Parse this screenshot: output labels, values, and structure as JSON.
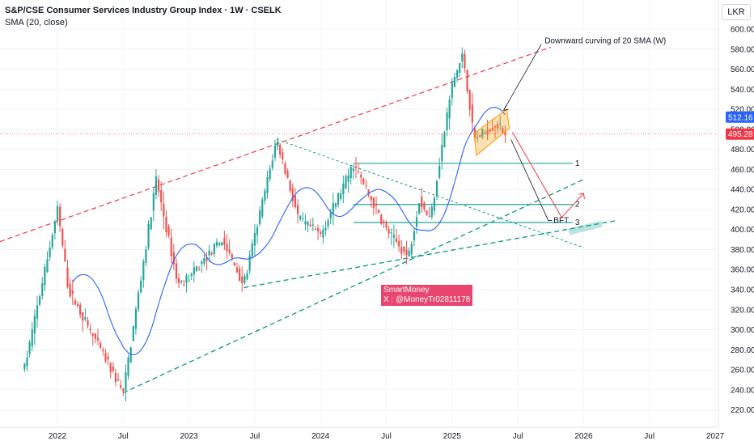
{
  "header": {
    "title": "S&P/CSE Consumer Services Industry Group Index · 1W · CSELK",
    "indicator": "SMA (20, close)",
    "currency": "LKR"
  },
  "watermark": {
    "line1": "SmartMoney",
    "line2": "X : @MoneyTr02811178"
  },
  "colors": {
    "up": "#26a69a",
    "down": "#ef5350",
    "sma": "#2962ff",
    "red_dashed": "#f23645",
    "green_dashed": "#089981",
    "level": "#26a69a",
    "price_tag_blue": "#2962ff",
    "price_tag_red": "#f23645"
  },
  "chart_data": {
    "type": "candlestick",
    "title": "S&P/CSE Consumer Services Industry Group Index · 1W · CSELK",
    "x_axis": {
      "tick_labels": [
        "2022",
        "Jul",
        "2023",
        "Jul",
        "2024",
        "Jul",
        "2025",
        "Jul",
        "2026",
        "Jul",
        "2027"
      ]
    },
    "y_axis": {
      "range": [
        210,
        612
      ],
      "tick_labels": [
        "600.00",
        "580.00",
        "560.00",
        "540.00",
        "520.00",
        "500.00",
        "480.00",
        "460.00",
        "440.00",
        "420.00",
        "400.00",
        "380.00",
        "360.00",
        "340.00",
        "320.00",
        "300.00",
        "280.00",
        "260.00",
        "240.00",
        "220.00"
      ]
    },
    "price_tags": [
      {
        "value": "512.16",
        "color": "#2962ff"
      },
      {
        "value": "495.28",
        "color": "#f23645"
      }
    ],
    "key_points": [
      {
        "date": "2021-10",
        "price": 262
      },
      {
        "date": "2022-01",
        "price": 420
      },
      {
        "date": "2022-02",
        "price": 340
      },
      {
        "date": "2022-07",
        "price": 237
      },
      {
        "date": "2022-10",
        "price": 450
      },
      {
        "date": "2022-12",
        "price": 345
      },
      {
        "date": "2023-01",
        "price": 352
      },
      {
        "date": "2023-04",
        "price": 390
      },
      {
        "date": "2023-06",
        "price": 345
      },
      {
        "date": "2023-09",
        "price": 490
      },
      {
        "date": "2023-11",
        "price": 410
      },
      {
        "date": "2024-01",
        "price": 395
      },
      {
        "date": "2024-04",
        "price": 465
      },
      {
        "date": "2024-07",
        "price": 400
      },
      {
        "date": "2024-09",
        "price": 372
      },
      {
        "date": "2024-10",
        "price": 430
      },
      {
        "date": "2024-11",
        "price": 410
      },
      {
        "date": "2025-01",
        "price": 545
      },
      {
        "date": "2025-02",
        "price": 575
      },
      {
        "date": "2025-03",
        "price": 490
      },
      {
        "date": "2025-05",
        "price": 505
      },
      {
        "date": "2025-06",
        "price": 495
      }
    ],
    "sma_period": 20,
    "levels": [
      {
        "label": "1",
        "price": 466
      },
      {
        "label": "2",
        "price": 425
      },
      {
        "label": "3",
        "price": 407
      }
    ],
    "annotations": [
      {
        "text": "Downward curving of 20 SMA (W)"
      },
      {
        "text": "BFT"
      }
    ]
  }
}
